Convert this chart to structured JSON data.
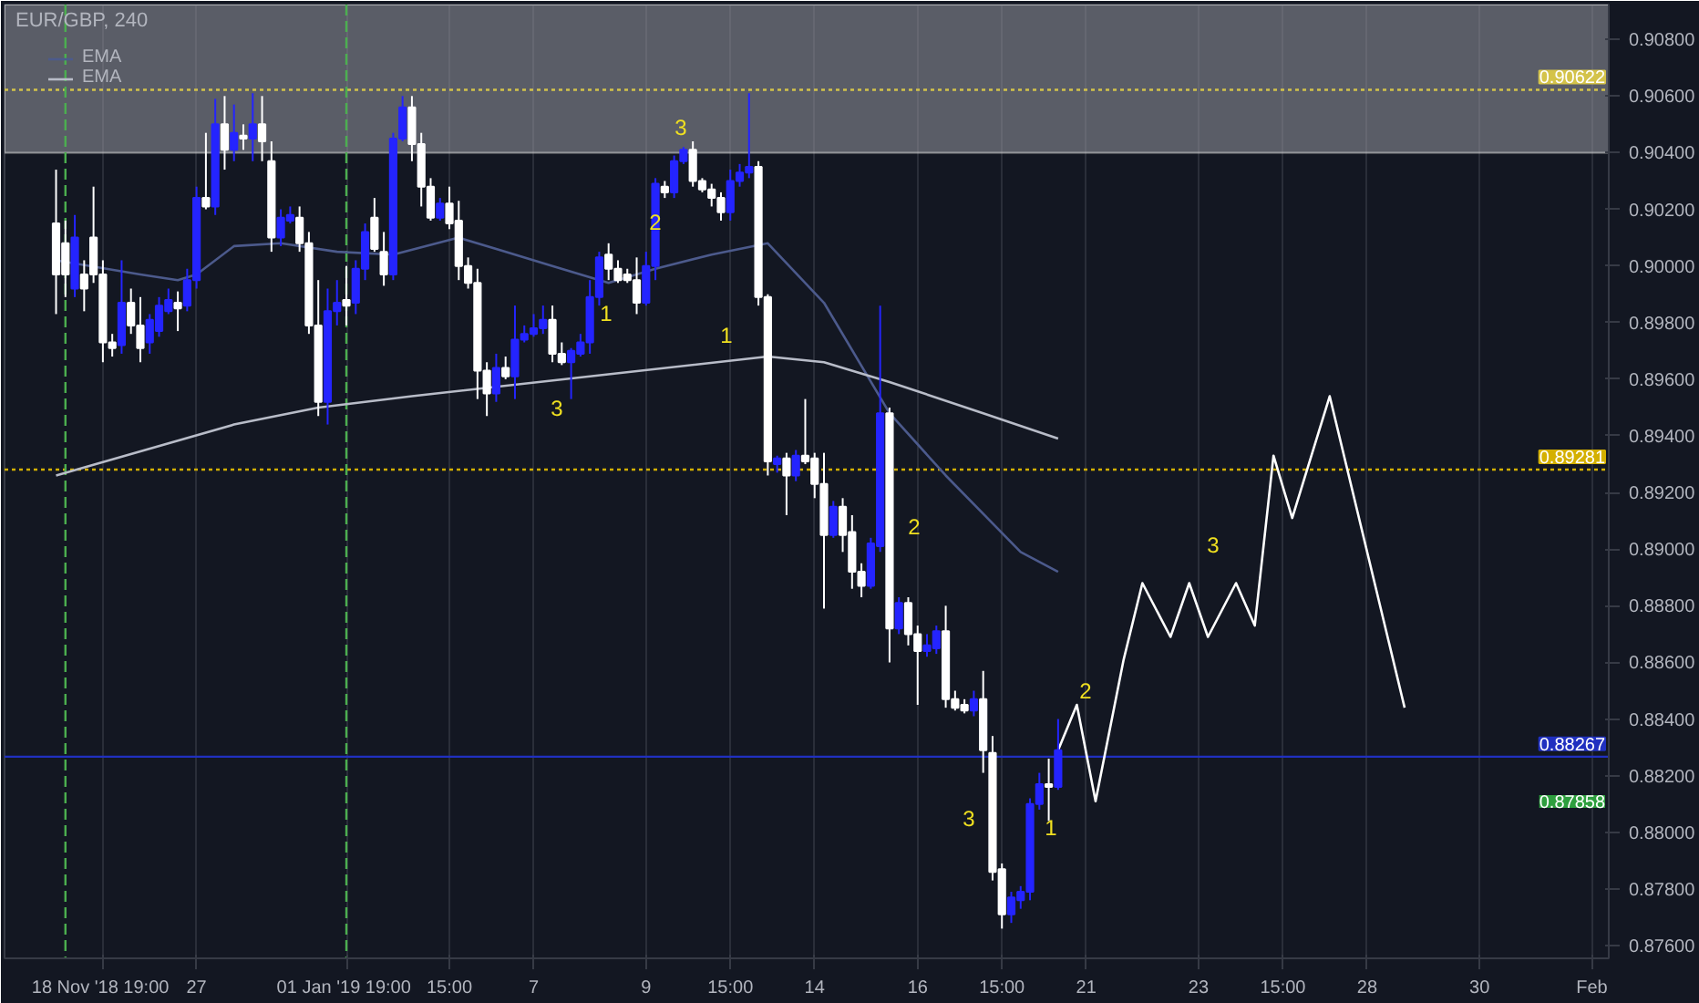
{
  "chart_data": {
    "type": "candlestick",
    "title": "EUR/GBP, 240",
    "categories": [
      null,
      null,
      null,
      null,
      null,
      "18 Nov '18  19:00",
      null,
      null,
      null,
      null,
      null,
      null,
      null,
      null,
      null,
      "27",
      null,
      null,
      null,
      null,
      null,
      null,
      null,
      null,
      null,
      null,
      null,
      null,
      null,
      null,
      null,
      "01 Jan '19  19:00",
      null,
      null,
      null,
      null,
      null,
      null,
      null,
      null,
      null,
      null,
      "15:00",
      null,
      null,
      null,
      null,
      null,
      null,
      null,
      null,
      "7",
      null,
      null,
      null,
      null,
      null,
      null,
      null,
      null,
      null,
      null,
      null,
      "9",
      null,
      null,
      null,
      null,
      null,
      null,
      null,
      null,
      "15:00",
      null,
      null,
      null,
      null,
      null,
      null,
      null,
      null,
      "14",
      null,
      null,
      null,
      null,
      null,
      null,
      null,
      null,
      null,
      null,
      "16",
      null,
      null,
      null,
      null,
      null,
      null,
      null,
      null,
      "15:00",
      null,
      null,
      null,
      null,
      null,
      null,
      null,
      null,
      "21",
      null,
      null,
      null,
      null,
      null,
      null,
      null,
      null,
      null,
      null,
      null,
      "23",
      null,
      null,
      null,
      null,
      null,
      null,
      null,
      null,
      "15:00",
      null,
      null,
      null,
      null,
      null,
      null,
      null,
      null,
      "28",
      null,
      null,
      null,
      null,
      null,
      null,
      null,
      null,
      null,
      null,
      null,
      "30",
      null,
      null,
      null,
      null,
      null,
      null,
      null,
      null,
      null,
      null,
      null,
      "Feb"
    ],
    "ohlc": [
      [
        0.9015,
        0.9034,
        0.8983,
        0.8997
      ],
      [
        0.9008,
        0.9016,
        0.8989,
        0.8997
      ],
      [
        0.8992,
        0.9018,
        0.8989,
        0.901
      ],
      [
        0.8997,
        0.9002,
        0.8984,
        0.8992
      ],
      [
        0.901,
        0.9028,
        0.8994,
        0.8997
      ],
      [
        0.8997,
        0.9002,
        0.8966,
        0.8973
      ],
      [
        0.8973,
        0.8976,
        0.8968,
        0.8971
      ],
      [
        0.8972,
        0.9002,
        0.8969,
        0.8987
      ],
      [
        0.8987,
        0.8992,
        0.8976,
        0.8979
      ],
      [
        0.8979,
        0.8989,
        0.8966,
        0.8971
      ],
      [
        0.8973,
        0.8983,
        0.8969,
        0.8981
      ],
      [
        0.8977,
        0.8989,
        0.8975,
        0.8986
      ],
      [
        0.8984,
        0.8992,
        0.8983,
        0.8988
      ],
      [
        0.8987,
        0.8991,
        0.8977,
        0.8985
      ],
      [
        0.8986,
        0.8999,
        0.8984,
        0.8995
      ],
      [
        0.8995,
        0.9028,
        0.8992,
        0.9024
      ],
      [
        0.9024,
        0.9047,
        0.902,
        0.9021
      ],
      [
        0.9021,
        0.9059,
        0.9018,
        0.905
      ],
      [
        0.905,
        0.906,
        0.9034,
        0.9041
      ],
      [
        0.9041,
        0.9057,
        0.9037,
        0.9047
      ],
      [
        0.9046,
        0.905,
        0.9041,
        0.9045
      ],
      [
        0.9045,
        0.9061,
        0.9037,
        0.905
      ],
      [
        0.905,
        0.906,
        0.9037,
        0.9044
      ],
      [
        0.9037,
        0.9044,
        0.9005,
        0.901
      ],
      [
        0.901,
        0.902,
        0.9007,
        0.9017
      ],
      [
        0.9016,
        0.9021,
        0.9015,
        0.9018
      ],
      [
        0.9017,
        0.9021,
        0.9005,
        0.9008
      ],
      [
        0.9008,
        0.9012,
        0.8976,
        0.8979
      ],
      [
        0.8979,
        0.8995,
        0.8947,
        0.8952
      ],
      [
        0.8952,
        0.8992,
        0.8944,
        0.8984
      ],
      [
        0.8984,
        0.8995,
        0.8979,
        0.8987
      ],
      [
        0.8988,
        0.9,
        0.8979,
        0.8986
      ],
      [
        0.8987,
        0.9002,
        0.8983,
        0.8999
      ],
      [
        0.8999,
        0.9015,
        0.8995,
        0.9012
      ],
      [
        0.9017,
        0.9024,
        0.9005,
        0.9006
      ],
      [
        0.9005,
        0.9012,
        0.8993,
        0.8997
      ],
      [
        0.8997,
        0.9047,
        0.8995,
        0.9045
      ],
      [
        0.9045,
        0.906,
        0.9044,
        0.9056
      ],
      [
        0.9056,
        0.906,
        0.9037,
        0.9043
      ],
      [
        0.9043,
        0.9047,
        0.9021,
        0.9028
      ],
      [
        0.9028,
        0.9031,
        0.9016,
        0.9017
      ],
      [
        0.9017,
        0.9024,
        0.9016,
        0.9022
      ],
      [
        0.9022,
        0.9028,
        0.9013,
        0.9015
      ],
      [
        0.9016,
        0.9023,
        0.8995,
        0.9
      ],
      [
        0.9,
        0.9003,
        0.8992,
        0.8994
      ],
      [
        0.8994,
        0.8999,
        0.8953,
        0.8963
      ],
      [
        0.8963,
        0.8966,
        0.8947,
        0.8955
      ],
      [
        0.8955,
        0.8969,
        0.8952,
        0.8964
      ],
      [
        0.8964,
        0.8968,
        0.896,
        0.8961
      ],
      [
        0.8961,
        0.8986,
        0.8953,
        0.8974
      ],
      [
        0.8974,
        0.8979,
        0.8973,
        0.8976
      ],
      [
        0.8976,
        0.8983,
        0.8975,
        0.8978
      ],
      [
        0.8978,
        0.8986,
        0.8976,
        0.8981
      ],
      [
        0.8981,
        0.8986,
        0.8966,
        0.8969
      ],
      [
        0.8969,
        0.8973,
        0.8965,
        0.8966
      ],
      [
        0.8966,
        0.8971,
        0.8953,
        0.897
      ],
      [
        0.8969,
        0.8976,
        0.8968,
        0.8973
      ],
      [
        0.8973,
        0.8995,
        0.8969,
        0.8989
      ],
      [
        0.8989,
        0.9005,
        0.8986,
        0.9003
      ],
      [
        0.9004,
        0.9008,
        0.8995,
        0.8999
      ],
      [
        0.8999,
        0.9002,
        0.8994,
        0.8995
      ],
      [
        0.8997,
        0.8999,
        0.8994,
        0.8995
      ],
      [
        0.8995,
        0.9003,
        0.8983,
        0.8987
      ],
      [
        0.8987,
        0.9005,
        0.8986,
        0.9
      ],
      [
        0.9,
        0.9031,
        0.8995,
        0.9029
      ],
      [
        0.9028,
        0.903,
        0.9024,
        0.9026
      ],
      [
        0.9026,
        0.9039,
        0.9024,
        0.9037
      ],
      [
        0.9037,
        0.9042,
        0.9036,
        0.9041
      ],
      [
        0.9041,
        0.9044,
        0.9028,
        0.903
      ],
      [
        0.903,
        0.9031,
        0.9026,
        0.9027
      ],
      [
        0.9027,
        0.9029,
        0.9021,
        0.9024
      ],
      [
        0.9024,
        0.9026,
        0.9016,
        0.9019
      ],
      [
        0.9019,
        0.9034,
        0.9016,
        0.903
      ],
      [
        0.903,
        0.9036,
        0.9028,
        0.9033
      ],
      [
        0.9033,
        0.9061,
        0.9031,
        0.9035
      ],
      [
        0.9035,
        0.9037,
        0.8986,
        0.8989
      ],
      [
        0.8989,
        0.899,
        0.8926,
        0.8931
      ],
      [
        0.893,
        0.8933,
        0.8927,
        0.8932
      ],
      [
        0.8932,
        0.8934,
        0.8912,
        0.8926
      ],
      [
        0.8926,
        0.8935,
        0.8924,
        0.8933
      ],
      [
        0.8933,
        0.8953,
        0.893,
        0.8931
      ],
      [
        0.8932,
        0.8934,
        0.8918,
        0.8923
      ],
      [
        0.8923,
        0.8934,
        0.8879,
        0.8905
      ],
      [
        0.8905,
        0.8917,
        0.8904,
        0.8915
      ],
      [
        0.8915,
        0.8918,
        0.8899,
        0.8905
      ],
      [
        0.8906,
        0.8912,
        0.8886,
        0.8892
      ],
      [
        0.8892,
        0.8895,
        0.8883,
        0.8887
      ],
      [
        0.8887,
        0.8904,
        0.8886,
        0.8902
      ],
      [
        0.8901,
        0.8986,
        0.8899,
        0.8948
      ],
      [
        0.8948,
        0.895,
        0.886,
        0.8872
      ],
      [
        0.8872,
        0.8883,
        0.887,
        0.8881
      ],
      [
        0.8881,
        0.8883,
        0.8866,
        0.887
      ],
      [
        0.887,
        0.8873,
        0.8845,
        0.8864
      ],
      [
        0.8864,
        0.887,
        0.8862,
        0.8866
      ],
      [
        0.8865,
        0.8873,
        0.8863,
        0.8871
      ],
      [
        0.8871,
        0.888,
        0.8844,
        0.8847
      ],
      [
        0.8847,
        0.885,
        0.8843,
        0.8844
      ],
      [
        0.8845,
        0.8847,
        0.8842,
        0.8843
      ],
      [
        0.8843,
        0.885,
        0.8841,
        0.8847
      ],
      [
        0.8847,
        0.8857,
        0.8821,
        0.8829
      ],
      [
        0.8828,
        0.8834,
        0.8783,
        0.8786
      ],
      [
        0.8787,
        0.8789,
        0.8766,
        0.8771
      ],
      [
        0.8771,
        0.8779,
        0.8768,
        0.8777
      ],
      [
        0.8776,
        0.8781,
        0.8773,
        0.8779
      ],
      [
        0.8779,
        0.8812,
        0.8776,
        0.881
      ],
      [
        0.881,
        0.8821,
        0.8808,
        0.8817
      ],
      [
        0.8817,
        0.8826,
        0.8804,
        0.8816
      ],
      [
        0.8816,
        0.884,
        0.8815,
        0.8829
      ],
      null,
      null,
      null,
      null,
      null,
      null,
      null,
      null,
      null,
      null,
      null,
      null,
      null,
      null,
      null,
      null,
      null,
      null,
      null,
      null,
      null,
      null,
      null,
      null,
      null,
      null,
      null,
      null,
      null,
      null,
      null,
      null,
      null,
      null,
      null,
      null,
      null,
      null,
      null,
      null,
      null,
      null,
      null,
      null,
      null,
      null,
      null,
      null,
      null,
      null,
      null,
      null,
      null,
      null,
      null,
      null,
      null
    ],
    "colors": [
      "#ffffff",
      "#ffffff",
      "#2424ff",
      "#ffffff",
      "#ffffff",
      "#ffffff",
      "#ffffff",
      "#2424ff",
      "#ffffff",
      "#ffffff",
      "#2424ff",
      "#2424ff",
      "#2424ff",
      "#ffffff",
      "#2424ff",
      "#2424ff",
      "#ffffff",
      "#2424ff",
      "#ffffff",
      "#2424ff",
      "#ffffff",
      "#2424ff",
      "#ffffff",
      "#ffffff",
      "#2424ff",
      "#2424ff",
      "#ffffff",
      "#ffffff",
      "#ffffff",
      "#2424ff",
      "#2424ff",
      "#ffffff",
      "#2424ff",
      "#2424ff",
      "#ffffff",
      "#ffffff",
      "#2424ff",
      "#2424ff",
      "#ffffff",
      "#ffffff",
      "#ffffff",
      "#2424ff",
      "#ffffff",
      "#ffffff",
      "#ffffff",
      "#ffffff",
      "#ffffff",
      "#2424ff",
      "#ffffff",
      "#2424ff",
      "#2424ff",
      "#2424ff",
      "#2424ff",
      "#ffffff",
      "#ffffff",
      "#2424ff",
      "#2424ff",
      "#2424ff",
      "#2424ff",
      "#ffffff",
      "#ffffff",
      "#ffffff",
      "#ffffff",
      "#2424ff",
      "#2424ff",
      "#ffffff",
      "#2424ff",
      "#2424ff",
      "#ffffff",
      "#ffffff",
      "#ffffff",
      "#ffffff",
      "#2424ff",
      "#2424ff",
      "#2424ff",
      "#ffffff",
      "#ffffff",
      "#2424ff",
      "#ffffff",
      "#2424ff",
      "#ffffff",
      "#ffffff",
      "#ffffff",
      "#2424ff",
      "#ffffff",
      "#ffffff",
      "#ffffff",
      "#2424ff",
      "#2424ff",
      "#ffffff",
      "#2424ff",
      "#ffffff",
      "#ffffff",
      "#2424ff",
      "#2424ff",
      "#ffffff",
      "#ffffff",
      "#ffffff",
      "#2424ff",
      "#ffffff",
      "#ffffff",
      "#ffffff",
      "#2424ff",
      "#2424ff",
      "#2424ff",
      "#2424ff",
      "#ffffff",
      "#2424ff",
      null,
      null,
      null,
      null,
      null,
      null,
      null,
      null,
      null,
      null,
      null,
      null,
      null,
      null,
      null,
      null,
      null,
      null,
      null,
      null,
      null,
      null,
      null,
      null,
      null,
      null,
      null,
      null,
      null,
      null,
      null,
      null,
      null,
      null,
      null,
      null,
      null,
      null,
      null,
      null,
      null,
      null,
      null,
      null,
      null,
      null,
      null,
      null,
      null,
      null,
      null,
      null,
      null,
      null,
      null,
      null,
      null
    ],
    "series": [
      {
        "type": "line",
        "name": "EMA",
        "color": "#4c5a8c",
        "values": [
          0.9002,
          null,
          null,
          null,
          null,
          null,
          null,
          null,
          null,
          0.8997,
          null,
          null,
          null,
          0.8995,
          null,
          0.8997,
          null,
          null,
          null,
          0.9007,
          null,
          null,
          null,
          null,
          0.9008,
          null,
          null,
          null,
          null,
          null,
          0.9005,
          null,
          null,
          null,
          null,
          null,
          0.9004,
          null,
          null,
          null,
          null,
          null,
          null,
          0.901,
          null,
          null,
          null,
          0.9006,
          null,
          null,
          null,
          null,
          null,
          0.9,
          null,
          null,
          null,
          null,
          null,
          0.8994,
          null,
          null,
          null,
          null,
          0.8999,
          null,
          null,
          null,
          null,
          null,
          0.9004,
          null,
          null,
          null,
          null,
          null,
          0.9008,
          null,
          null,
          null,
          null,
          null,
          0.8987,
          null,
          null,
          null,
          null,
          null,
          null,
          0.8948,
          null,
          null,
          null,
          null,
          null,
          0.8926,
          null,
          null,
          null,
          null,
          null,
          null,
          null,
          0.8899,
          null,
          null,
          null,
          0.8892,
          null,
          null,
          null,
          null,
          null,
          null,
          null,
          null,
          null,
          null,
          null,
          null,
          null,
          null,
          null,
          null,
          null,
          null,
          null,
          null,
          null,
          null,
          null,
          null,
          null,
          null,
          null,
          null,
          null,
          null,
          null,
          null,
          null,
          null,
          null,
          null,
          null,
          null,
          null,
          null,
          null,
          null,
          null,
          null,
          null,
          null,
          null,
          null,
          null,
          null,
          null,
          null,
          null,
          null,
          null,
          null,
          null
        ]
      },
      {
        "type": "line",
        "name": "EMA",
        "color": "#b8bcc8",
        "values": [
          0.8926,
          null,
          null,
          null,
          null,
          null,
          null,
          null,
          null,
          null,
          null,
          null,
          null,
          null,
          null,
          null,
          null,
          null,
          null,
          0.8944,
          null,
          null,
          null,
          null,
          null,
          null,
          null,
          null,
          0.895,
          null,
          null,
          null,
          null,
          null,
          null,
          null,
          null,
          null,
          0.8954,
          null,
          null,
          null,
          null,
          null,
          null,
          null,
          null,
          null,
          null,
          null,
          null,
          null,
          null,
          null,
          null,
          null,
          null,
          0.8961,
          null,
          null,
          null,
          null,
          null,
          null,
          null,
          null,
          null,
          null,
          null,
          null,
          null,
          null,
          null,
          null,
          null,
          null,
          0.8968,
          null,
          null,
          null,
          null,
          null,
          0.8966,
          null,
          null,
          null,
          null,
          null,
          null,
          0.8959,
          null,
          null,
          null,
          null,
          null,
          null,
          null,
          null,
          null,
          0.8948,
          null,
          null,
          null,
          null,
          null,
          null,
          null,
          0.8939,
          null,
          null,
          null,
          null,
          null,
          null,
          null,
          null,
          null,
          null,
          null,
          null,
          null,
          null,
          null,
          null,
          null,
          null,
          null,
          null,
          null,
          null,
          null,
          null,
          null,
          null,
          null,
          null,
          null,
          null,
          null,
          null,
          null,
          null,
          null,
          null,
          null,
          null,
          null,
          null,
          null,
          null,
          null,
          null,
          null,
          null,
          null,
          null,
          null,
          null,
          null,
          null,
          null,
          null,
          null,
          null,
          null
        ]
      },
      {
        "type": "line",
        "color": "#ffffff",
        "values": [
          null,
          null,
          null,
          null,
          null,
          null,
          null,
          null,
          null,
          null,
          null,
          null,
          null,
          null,
          null,
          null,
          null,
          null,
          null,
          null,
          null,
          null,
          null,
          null,
          null,
          null,
          null,
          null,
          null,
          null,
          null,
          null,
          null,
          null,
          null,
          null,
          null,
          null,
          null,
          null,
          null,
          null,
          null,
          null,
          null,
          null,
          null,
          null,
          null,
          null,
          null,
          null,
          null,
          null,
          null,
          null,
          null,
          null,
          null,
          null,
          null,
          null,
          null,
          null,
          null,
          null,
          null,
          null,
          null,
          null,
          null,
          null,
          null,
          null,
          null,
          null,
          null,
          null,
          null,
          null,
          null,
          null,
          null,
          null,
          null,
          null,
          null,
          null,
          null,
          null,
          null,
          null,
          null,
          null,
          null,
          null,
          null,
          null,
          null,
          null,
          null,
          null,
          null,
          null,
          null,
          null,
          null,
          0.8829,
          null,
          0.8845,
          null,
          0.8811,
          null,
          null,
          0.8861,
          null,
          0.8888,
          null,
          null,
          0.8869,
          null,
          0.8888,
          null,
          0.8869,
          null,
          null,
          0.8888,
          null,
          0.8873,
          null,
          0.8933,
          null,
          0.8911,
          null,
          null,
          null,
          0.8954,
          null,
          null,
          null,
          null,
          null,
          null,
          null,
          0.8844,
          null,
          null,
          null,
          null,
          null,
          null,
          null,
          null,
          null,
          null,
          null,
          null,
          null,
          null,
          null,
          null,
          null,
          null,
          null,
          null
        ]
      }
    ],
    "ylim": [
      0.87555,
      0.90923
    ],
    "yticks": [
      {
        "value": 0.876,
        "label": "0.87600"
      },
      {
        "value": 0.878,
        "label": "0.87800"
      },
      {
        "value": 0.88,
        "label": "0.88000"
      },
      {
        "value": 0.882,
        "label": "0.88200"
      },
      {
        "value": 0.884,
        "label": "0.88400"
      },
      {
        "value": 0.886,
        "label": "0.88600"
      },
      {
        "value": 0.888,
        "label": "0.88800"
      },
      {
        "value": 0.89,
        "label": "0.89000"
      },
      {
        "value": 0.892,
        "label": "0.89200"
      },
      {
        "value": 0.894,
        "label": "0.89400"
      },
      {
        "value": 0.896,
        "label": "0.89600"
      },
      {
        "value": 0.898,
        "label": "0.89800"
      },
      {
        "value": 0.9,
        "label": "0.90000"
      },
      {
        "value": 0.902,
        "label": "0.90200"
      },
      {
        "value": 0.904,
        "label": "0.90400"
      },
      {
        "value": 0.906,
        "label": "0.90600"
      },
      {
        "value": 0.908,
        "label": "0.90800"
      }
    ],
    "grid": "x",
    "legend": "top left",
    "bands": [
      {
        "axis": "y",
        "from": 0.904,
        "to": 0.90923,
        "color": "#9598a1"
      }
    ],
    "ref_lines": [
      {
        "axis": "y",
        "value": 0.90622,
        "label": "0.90622",
        "color": "#d4c34a",
        "line_style": "dotted"
      },
      {
        "axis": "y",
        "value": 0.89281,
        "label": "0.89281",
        "color": "#d4b000",
        "line_style": "dotted"
      },
      {
        "axis": "y",
        "value": 0.88267,
        "label": "0.88267",
        "color": "#2030c0",
        "line_style": "solid"
      }
    ],
    "annotations": [
      "3",
      "2",
      "1",
      "3",
      "1",
      "2",
      "3",
      "1",
      "2",
      "3",
      "0.87858"
    ]
  }
}
